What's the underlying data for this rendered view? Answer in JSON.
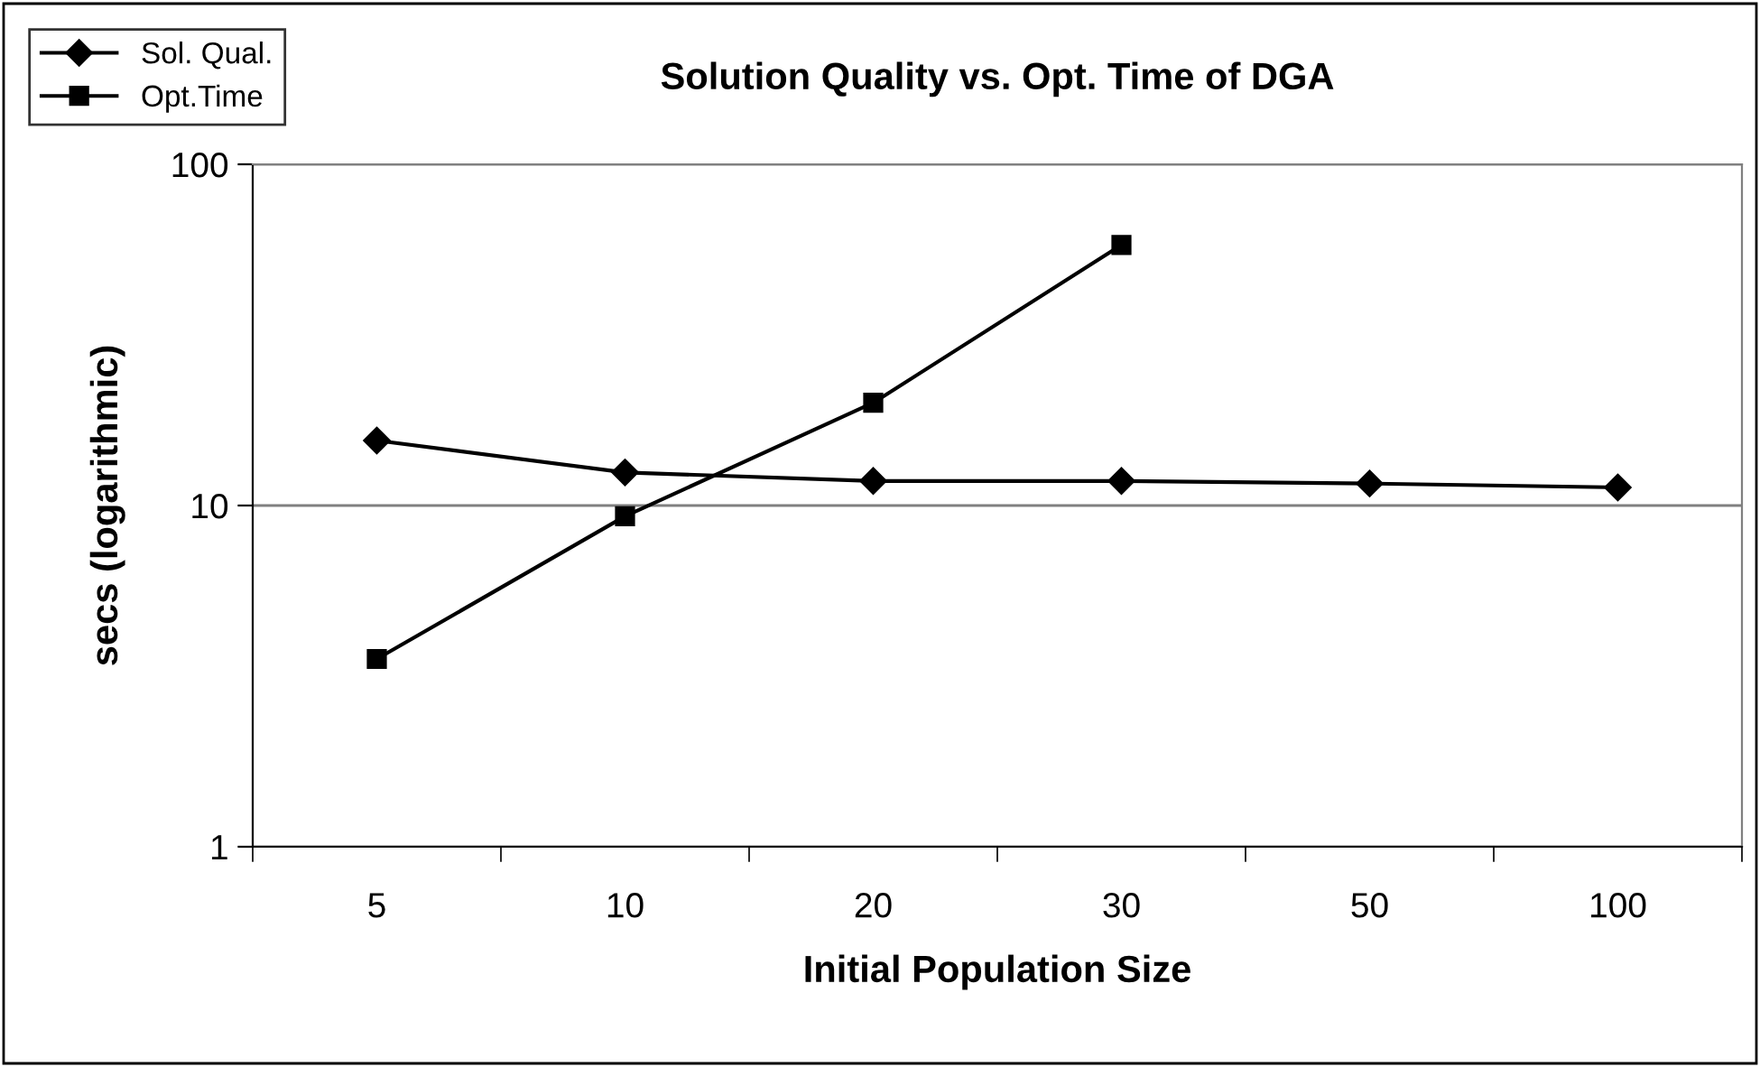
{
  "chart_data": {
    "type": "line",
    "title": "Solution Quality vs. Opt. Time of DGA",
    "xlabel": "Initial Population Size",
    "ylabel": "secs (logarithmic)",
    "categories": [
      "5",
      "10",
      "20",
      "30",
      "50",
      "100"
    ],
    "series": [
      {
        "name": "Sol. Qual.",
        "color": "#000000",
        "marker": "diamond",
        "values": [
          15.5,
          12.5,
          11.8,
          11.8,
          11.6,
          11.3
        ]
      },
      {
        "name": "Opt.Time",
        "color": "#000000",
        "marker": "square",
        "values": [
          3.55,
          9.3,
          20,
          58,
          null,
          null
        ]
      }
    ],
    "log": "y",
    "ylim": [
      1,
      100
    ],
    "yticks": [
      1,
      10,
      100
    ],
    "grid": "y",
    "legend": "top left",
    "line_style": "solid"
  }
}
